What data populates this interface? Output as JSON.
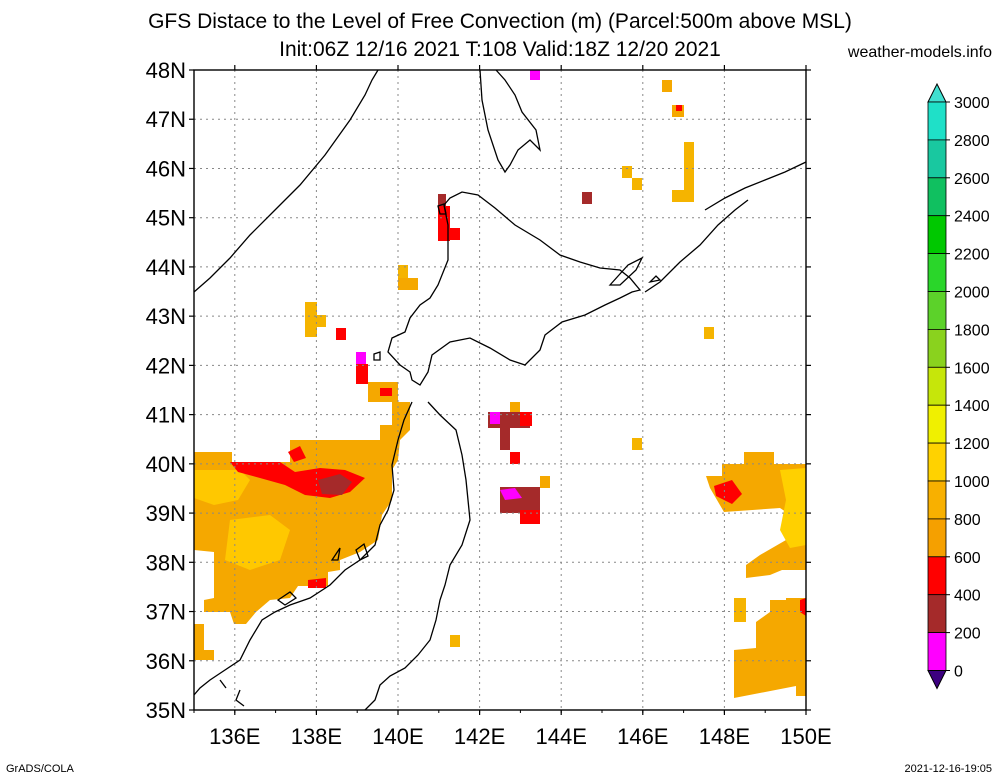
{
  "title_line1": "GFS Distace to the Level of Free Convection (m) (Parcel:500m above MSL)",
  "title_line2": "Init:06Z 12/16 2021 T:108 Valid:18Z 12/20 2021",
  "source_site": "weather-models.info",
  "footer_left": "GrADS/COLA",
  "footer_right": "2021-12-16-19:05",
  "lat_labels": [
    "48N",
    "47N",
    "46N",
    "45N",
    "44N",
    "43N",
    "42N",
    "41N",
    "40N",
    "39N",
    "38N",
    "37N",
    "36N",
    "35N"
  ],
  "lon_labels": [
    "136E",
    "138E",
    "140E",
    "142E",
    "144E",
    "146E",
    "148E",
    "150E"
  ],
  "colorbar": {
    "labels": [
      "3000",
      "2800",
      "2600",
      "2400",
      "2200",
      "2000",
      "1800",
      "1600",
      "1400",
      "1200",
      "1000",
      "800",
      "600",
      "400",
      "200",
      "0"
    ],
    "colors": [
      "#1fe0c8",
      "#19c8a0",
      "#10c060",
      "#00c800",
      "#2ad62a",
      "#5cd22a",
      "#8ad21e",
      "#c6e60a",
      "#f0f000",
      "#ffd200",
      "#f8b000",
      "#f5a000",
      "#ff0000",
      "#a52a2a",
      "#ff00ff",
      "#3c0080"
    ],
    "top_arrow_color": "#40e0d0",
    "bottom_arrow_color": "#3c0080"
  },
  "map": {
    "lon_range": [
      135,
      150
    ],
    "lat_range": [
      35,
      48
    ],
    "grid": true
  }
}
